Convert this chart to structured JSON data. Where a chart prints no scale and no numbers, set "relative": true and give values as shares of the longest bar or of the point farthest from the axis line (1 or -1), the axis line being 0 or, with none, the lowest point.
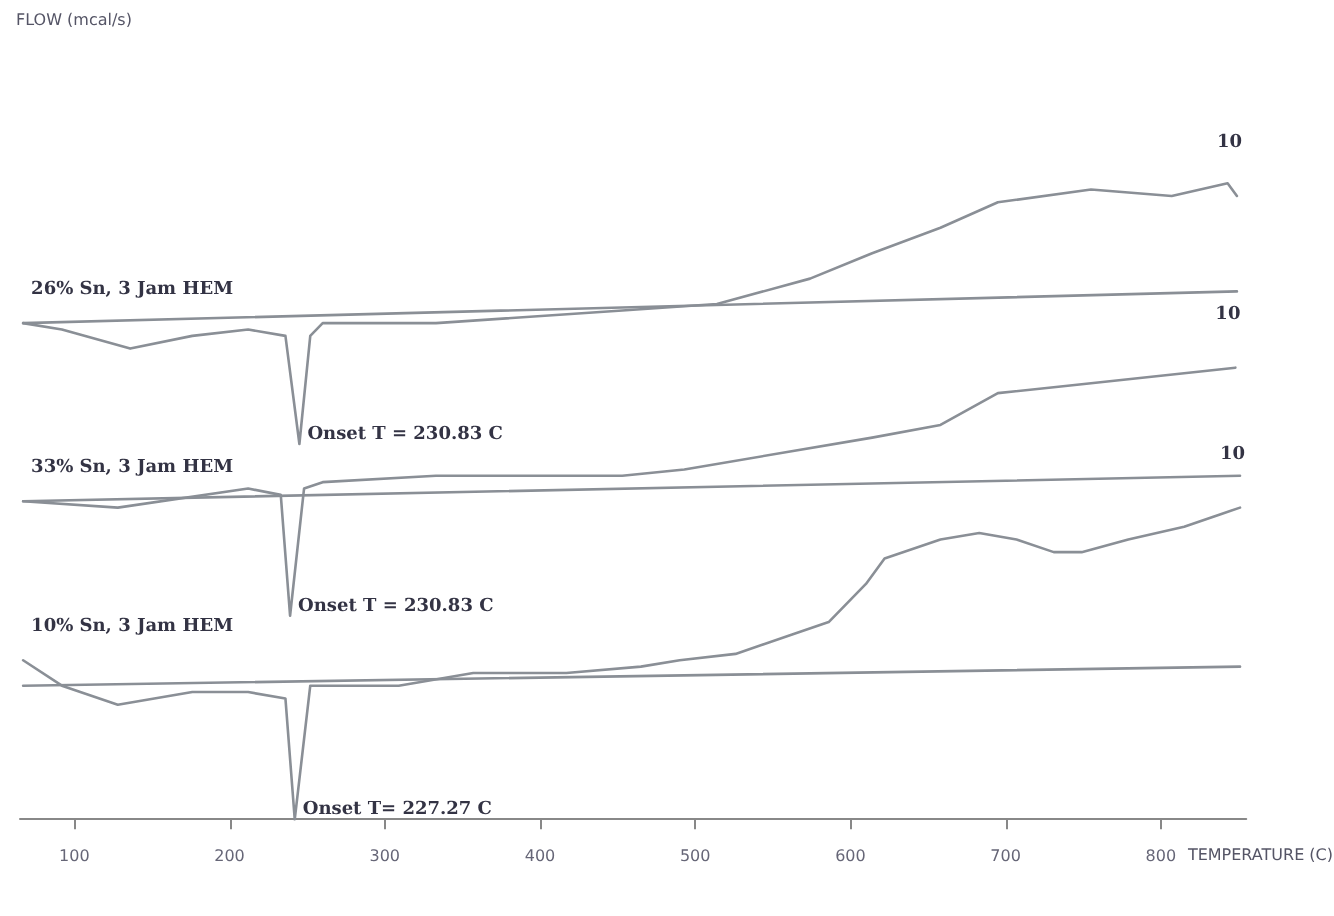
{
  "chart_data": {
    "type": "line",
    "relative": true,
    "xlabel": "TEMPERATURE (C)",
    "xlim": [
      65,
      855
    ],
    "xticks": [
      100,
      200,
      300,
      400,
      500,
      600,
      700,
      800
    ],
    "tick_labels": "x",
    "grid": false,
    "marker": "none",
    "line_style": "solid",
    "series": [
      {
        "name": "26% Sn, 3 Jam HEM",
        "color": "#8a8f96",
        "x": [
          67,
          92,
          136,
          176,
          212,
          236,
          245,
          252,
          260,
          333,
          453,
          514,
          574,
          614,
          658,
          695,
          755,
          807,
          843,
          849
        ],
        "values": [
          0.78,
          0.77,
          0.74,
          0.76,
          0.77,
          0.76,
          0.59,
          0.76,
          0.78,
          0.78,
          0.8,
          0.81,
          0.85,
          0.89,
          0.93,
          0.97,
          0.99,
          0.98,
          1.0,
          0.98
        ]
      },
      {
        "color": "#8a8f96",
        "x": [
          67,
          849
        ],
        "values": [
          0.78,
          0.83
        ]
      },
      {
        "name": "33% Sn, 3 Jam HEM",
        "color": "#8a8f96",
        "x": [
          67,
          128,
          212,
          233,
          239,
          248,
          260,
          333,
          453,
          493,
          614,
          658,
          695,
          734,
          848
        ],
        "values": [
          0.5,
          0.49,
          0.52,
          0.51,
          0.32,
          0.52,
          0.53,
          0.54,
          0.54,
          0.55,
          0.6,
          0.62,
          0.67,
          0.68,
          0.71
        ]
      },
      {
        "color": "#8a8f96",
        "x": [
          67,
          851
        ],
        "values": [
          0.5,
          0.54
        ]
      },
      {
        "name": "10% Sn, 3 Jam HEM",
        "color": "#8a8f96",
        "x": [
          67,
          92,
          128,
          176,
          212,
          236,
          242,
          252,
          285,
          309,
          357,
          417,
          465,
          490,
          526,
          562,
          586,
          610,
          622,
          658,
          683,
          707,
          731,
          749,
          779,
          815,
          839,
          851
        ],
        "values": [
          0.25,
          0.21,
          0.18,
          0.2,
          0.2,
          0.19,
          0,
          0.21,
          0.21,
          0.21,
          0.23,
          0.23,
          0.24,
          0.25,
          0.26,
          0.29,
          0.31,
          0.37,
          0.41,
          0.44,
          0.45,
          0.44,
          0.42,
          0.42,
          0.44,
          0.46,
          0.48,
          0.49
        ]
      },
      {
        "color": "#8a8f96",
        "x": [
          67,
          851
        ],
        "values": [
          0.21,
          0.24
        ]
      }
    ],
    "annotations": [
      {
        "text": "Onset T = 230.83 C",
        "x": 245,
        "y": 0.59
      },
      {
        "text": "Onset T = 230.83 C",
        "x": 239,
        "y": 0.32
      },
      {
        "text": "Onset T= 227.27 C",
        "x": 242,
        "y": 0
      },
      "FLOW (mcal/s)",
      "10",
      "10",
      "10"
    ]
  }
}
